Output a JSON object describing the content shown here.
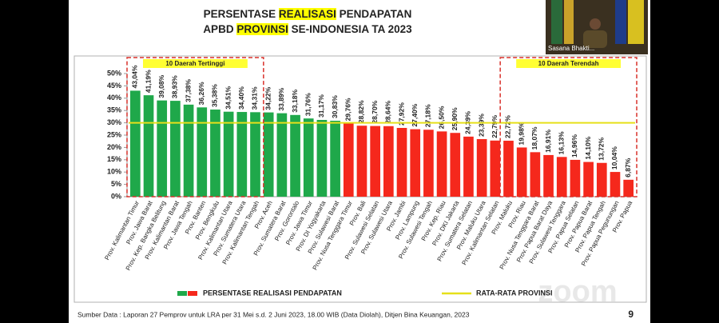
{
  "chart_data": {
    "type": "bar",
    "title_lines": [
      {
        "parts": [
          "PERSENTASE",
          "REALISASI",
          "PENDAPATAN"
        ],
        "highlight": 1
      },
      {
        "parts": [
          "APBD",
          "PROVINSI",
          "SE-INDONESIA TA 2023"
        ],
        "highlight": 1
      }
    ],
    "categories": [
      "Prov. Kalimantan Timur",
      "Prov. Jawa Barat",
      "Prov. Kep. Bangka Belitung",
      "Prov. Kalimantan Barat",
      "Prov. Jawa Tengah",
      "Prov. Banten",
      "Prov. Bengkulu",
      "Prov. Kalimantan Utara",
      "Prov. Sumatera Utara",
      "Prov. Kalimantan Tengah",
      "Prov. Aceh",
      "Prov. Sumatera Barat",
      "Prov. Gorontalo",
      "Prov. Jawa Timur",
      "Prov. DI Yogyakarta",
      "Prov. Sulawesi Barat",
      "Prov. Nusa Tenggara Timur",
      "Prov. Bali",
      "Prov. Sulawesi Selatan",
      "Prov. Sulawesi Utara",
      "Prov. Jambi",
      "Prov. Lampung",
      "Prov. Sulawesi Tengah",
      "Prov. Kep. Riau",
      "Prov. DKI Jakarta",
      "Prov. Sumatera Selatan",
      "Prov. Maluku Utara",
      "Prov. Kalimantan Selatan",
      "Prov. Maluku",
      "Prov. Riau",
      "Prov. Nusa Tenggara Barat",
      "Prov. Papua Barat Daya",
      "Prov. Sulawesi Tenggara",
      "Prov. Papua Selatan",
      "Prov. Papua Barat",
      "Prov. Papua Tengah",
      "Prov. Papua Pegunungan",
      "Prov. Papua"
    ],
    "series": [
      {
        "name": "PERSENTASE REALISASI PENDAPATAN",
        "values": [
          43.04,
          41.19,
          39.08,
          38.93,
          37.38,
          36.26,
          35.38,
          34.51,
          34.4,
          34.31,
          34.22,
          33.89,
          33.18,
          31.76,
          31.17,
          30.83,
          29.76,
          28.82,
          28.7,
          28.64,
          27.92,
          27.4,
          27.18,
          26.5,
          25.9,
          24.39,
          23.39,
          22.79,
          22.72,
          19.98,
          18.07,
          16.91,
          16.13,
          14.96,
          14.1,
          13.72,
          10.04,
          6.87
        ],
        "value_labels": [
          "43,04%",
          "41,19%",
          "39,08%",
          "38,93%",
          "37,38%",
          "36,26%",
          "35,38%",
          "34,51%",
          "34,40%",
          "34,31%",
          "34,22%",
          "33,89%",
          "33,18%",
          "31,76%",
          "31,17%",
          "30,83%",
          "29,76%",
          "28,82%",
          "28,70%",
          "28,64%",
          "27,92%",
          "27,40%",
          "27,18%",
          "26,50%",
          "25,90%",
          "24,39%",
          "23,39%",
          "22,79%",
          "22,72%",
          "19,98%",
          "18,07%",
          "16,91%",
          "16,13%",
          "14,96%",
          "14,10%",
          "13,72%",
          "10,04%",
          "6,87%"
        ],
        "colors": [
          "#1fa84a",
          "#1fa84a",
          "#1fa84a",
          "#1fa84a",
          "#1fa84a",
          "#1fa84a",
          "#1fa84a",
          "#1fa84a",
          "#1fa84a",
          "#1fa84a",
          "#1fa84a",
          "#1fa84a",
          "#1fa84a",
          "#1fa84a",
          "#1fa84a",
          "#1fa84a",
          "#f5281c",
          "#f5281c",
          "#f5281c",
          "#f5281c",
          "#f5281c",
          "#f5281c",
          "#f5281c",
          "#f5281c",
          "#f5281c",
          "#f5281c",
          "#f5281c",
          "#f5281c",
          "#f5281c",
          "#f5281c",
          "#f5281c",
          "#f5281c",
          "#f5281c",
          "#f5281c",
          "#f5281c",
          "#f5281c",
          "#f5281c",
          "#f5281c"
        ],
        "legend_colors": [
          "#1fa84a",
          "#f5281c"
        ]
      }
    ],
    "ylim": [
      0,
      50
    ],
    "yticks": [
      {
        "value": 0,
        "label": "0%"
      },
      {
        "value": 5,
        "label": "5%"
      },
      {
        "value": 10,
        "label": "10%"
      },
      {
        "value": 15,
        "label": "15%"
      },
      {
        "value": 20,
        "label": "20%"
      },
      {
        "value": 25,
        "label": "25%"
      },
      {
        "value": 30,
        "label": "30%"
      },
      {
        "value": 35,
        "label": "35%"
      },
      {
        "value": 40,
        "label": "40%"
      },
      {
        "value": 45,
        "label": "45%"
      },
      {
        "value": 50,
        "label": "50%"
      }
    ],
    "reference_line": {
      "value": 30,
      "label": "RATA-RATA PROVINSI",
      "color": "#e6e01a"
    },
    "groups": [
      {
        "label": "10 Daerah Tertinggi",
        "from": 0,
        "to": 9,
        "color": "#d9302a"
      },
      {
        "label": "10 Daerah Terendah",
        "from": 28,
        "to": 37,
        "color": "#d9302a"
      }
    ],
    "source": "Sumber Data : Laporan 27 Pemprov untuk LRA per 31 Mei s.d. 2 Juni 2023, 18.00 WIB (Data Diolah), Ditjen Bina Keuangan, 2023",
    "page_number": "9",
    "video_tile_name": "Sasana Bhakti...",
    "watermark": "zoom"
  }
}
